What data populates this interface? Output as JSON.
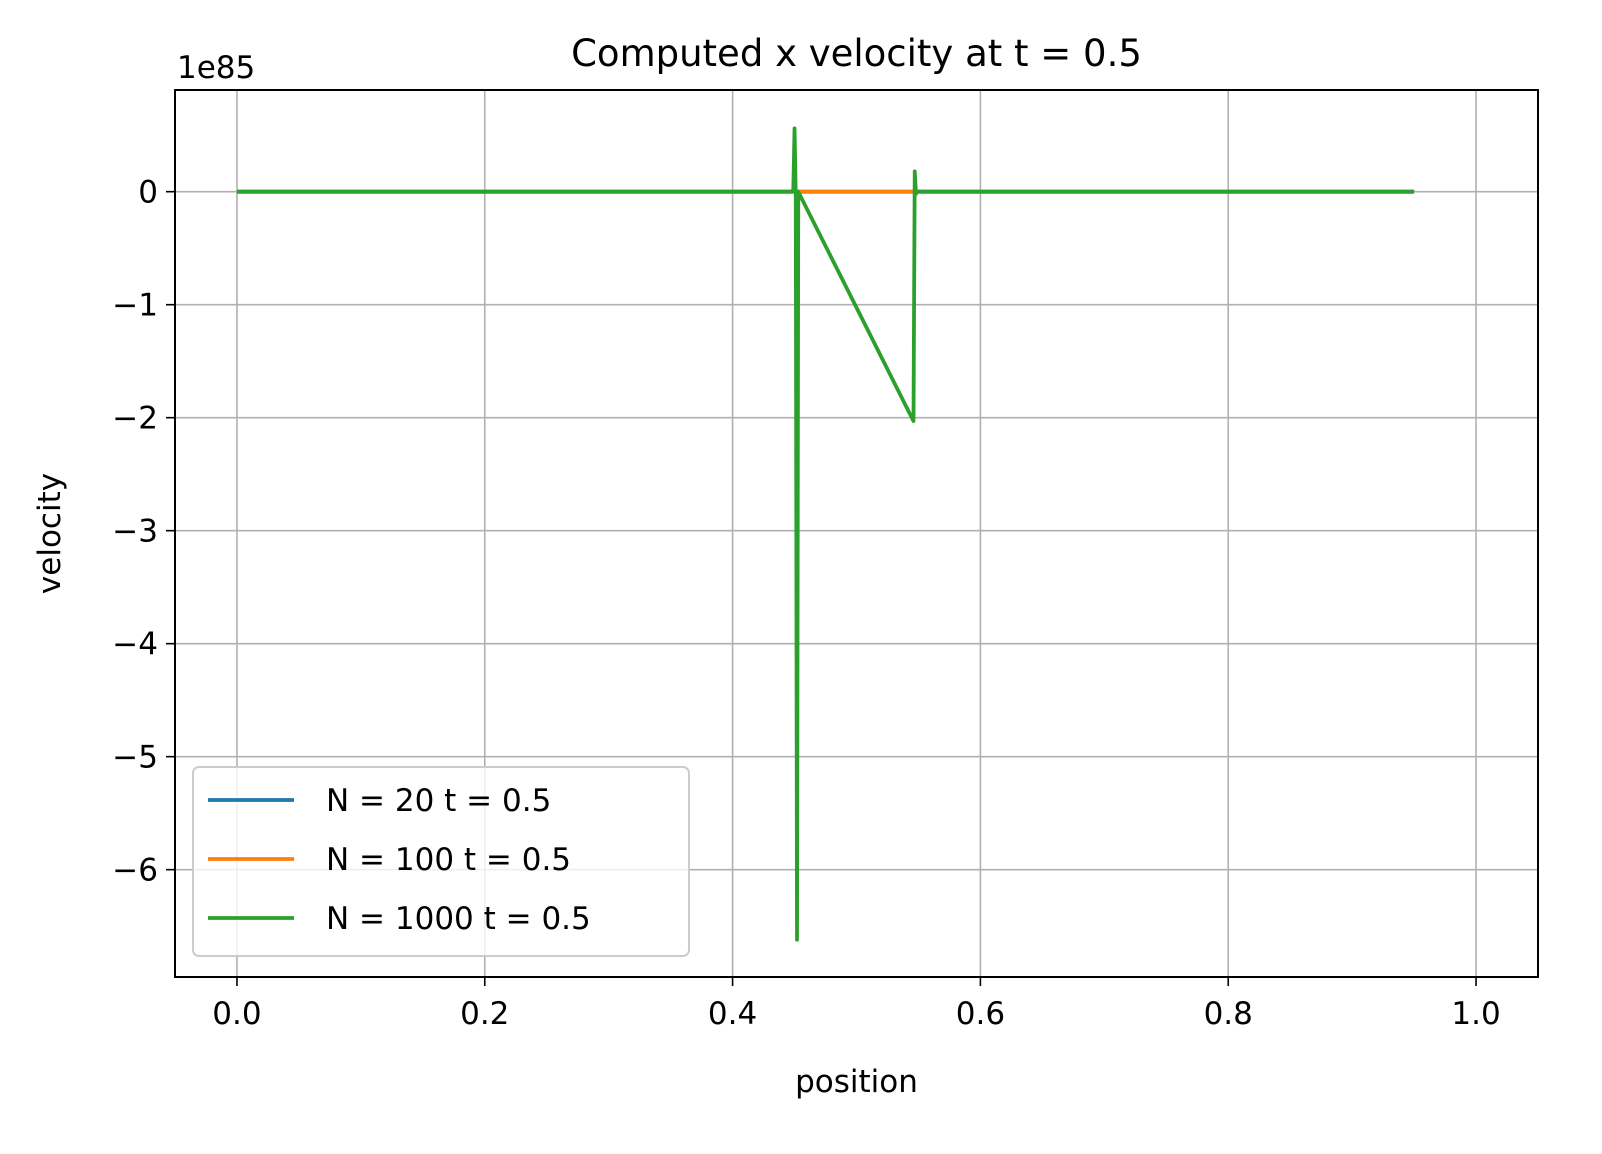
{
  "chart_data": {
    "type": "line",
    "title": "Computed x velocity at t = 0.5",
    "xlabel": "position",
    "ylabel": "velocity",
    "y_offset_label": "1e85",
    "xlim": [
      -0.05,
      1.05
    ],
    "ylim": [
      -6.95,
      0.9
    ],
    "x_ticks": [
      0.0,
      0.2,
      0.4,
      0.6,
      0.8,
      1.0
    ],
    "x_tick_labels": [
      "0.0",
      "0.2",
      "0.4",
      "0.6",
      "0.8",
      "1.0"
    ],
    "y_ticks": [
      0,
      -1,
      -2,
      -3,
      -4,
      -5,
      -6
    ],
    "y_tick_labels": [
      "0",
      "−1",
      "−2",
      "−3",
      "−4",
      "−5",
      "−6"
    ],
    "grid": true,
    "legend_position": "lower-left",
    "series": [
      {
        "name": "N = 20 t = 0.5",
        "color": "#1f77b4",
        "x": [
          0.0,
          0.95
        ],
        "y": [
          0,
          0
        ]
      },
      {
        "name": "N = 100 t = 0.5",
        "color": "#ff7f0e",
        "x": [
          0.0,
          0.95
        ],
        "y": [
          0,
          0
        ]
      },
      {
        "name": "N = 1000 t = 0.5",
        "color": "#2ca02c",
        "x": [
          0.0,
          0.448,
          0.449,
          0.45,
          0.451,
          0.452,
          0.453,
          0.546,
          0.547,
          0.548,
          0.549,
          0.95
        ],
        "y": [
          0,
          0,
          0.02,
          0.56,
          -0.05,
          -6.62,
          0,
          -2.03,
          0.18,
          -0.02,
          0,
          0
        ]
      }
    ]
  }
}
